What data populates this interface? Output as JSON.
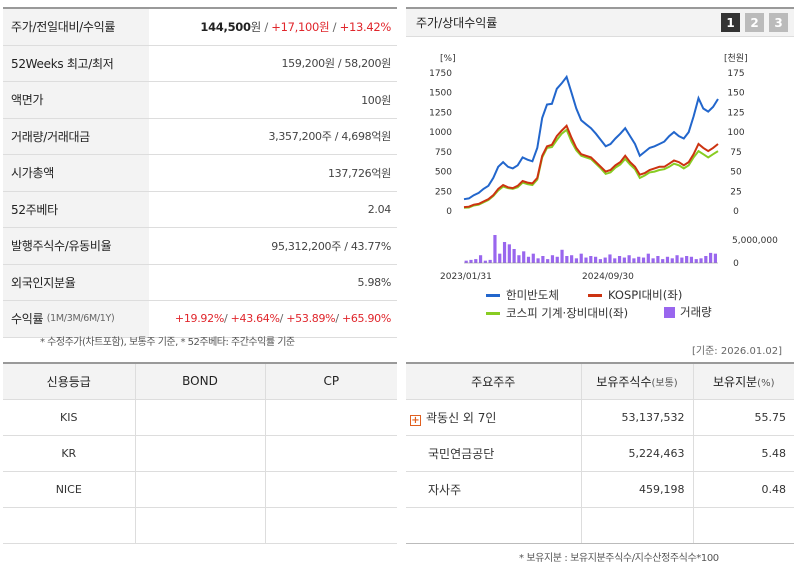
{
  "summary": {
    "rows": [
      {
        "label": "주가/전일대비/수익률",
        "price": "144,500",
        "price_unit": "원",
        "change": "+17,100원",
        "return": "+13.42%"
      },
      {
        "label": "52Weeks 최고/최저",
        "value": "159,200원 / 58,200원"
      },
      {
        "label": "액면가",
        "value": "100원"
      },
      {
        "label": "거래량/거래대금",
        "value": "3,357,200주 / 4,698억원"
      },
      {
        "label": "시가총액",
        "value": "137,726억원"
      },
      {
        "label": "52주베타",
        "value": "2.04"
      },
      {
        "label": "발행주식수/유동비율",
        "value": "95,312,200주 / 43.77%"
      },
      {
        "label": "외국인지분율",
        "value": "5.98%"
      },
      {
        "label": "수익률",
        "label_sub": "(1M/3M/6M/1Y)",
        "r1": "+19.92%",
        "r2": "+43.64%",
        "r3": "+53.89%",
        "r4": "+65.90%"
      }
    ],
    "note": "* 수정주가(차트포함), 보통주 기준, * 52주베타: 주간수익률 기준"
  },
  "chart_panel": {
    "title": "주가/상대수익률",
    "tabs": [
      "1",
      "2",
      "3"
    ],
    "date_note": "[기준: 2026.01.02]"
  },
  "chart_data": {
    "type": "line",
    "left_unit": "[%]",
    "right_unit": "[천원]",
    "left_ticks": [
      "1750",
      "1500",
      "1250",
      "1000",
      "750",
      "500",
      "250",
      "0"
    ],
    "right_ticks": [
      "175",
      "150",
      "125",
      "100",
      "75",
      "50",
      "25",
      "0"
    ],
    "volume_tick": "5,000,000",
    "volume_zero": "0",
    "x_labels": [
      "2023/01/31",
      "2024/09/30"
    ],
    "ylim": [
      0,
      1750
    ],
    "series": [
      {
        "name": "한미반도체",
        "color": "#2266cc",
        "values": [
          150,
          160,
          200,
          230,
          280,
          320,
          420,
          560,
          620,
          560,
          540,
          580,
          680,
          650,
          630,
          800,
          1180,
          1350,
          1360,
          1550,
          1620,
          1700,
          1500,
          1300,
          1150,
          1100,
          1050,
          980,
          900,
          820,
          850,
          920,
          980,
          1050,
          950,
          850,
          700,
          750,
          800,
          820,
          850,
          880,
          950,
          1000,
          950,
          920,
          1000,
          1200,
          1430,
          1300,
          1260,
          1320,
          1420
        ]
      },
      {
        "name": "KOSPI대비(좌)",
        "color": "#cc3311",
        "values": [
          50,
          55,
          80,
          90,
          120,
          150,
          200,
          280,
          330,
          300,
          290,
          320,
          380,
          360,
          350,
          420,
          700,
          820,
          840,
          950,
          1020,
          1080,
          930,
          800,
          720,
          700,
          680,
          620,
          560,
          500,
          520,
          580,
          620,
          700,
          620,
          560,
          460,
          480,
          520,
          540,
          560,
          560,
          600,
          640,
          620,
          580,
          620,
          720,
          850,
          800,
          760,
          800,
          850
        ]
      },
      {
        "name": "코스피 기계·장비대비(좌)",
        "color": "#88cc22",
        "values": [
          40,
          45,
          70,
          80,
          110,
          140,
          190,
          260,
          310,
          290,
          280,
          300,
          360,
          340,
          330,
          400,
          680,
          800,
          810,
          900,
          980,
          1030,
          880,
          770,
          700,
          680,
          660,
          600,
          540,
          470,
          490,
          550,
          590,
          660,
          590,
          530,
          420,
          450,
          490,
          500,
          520,
          530,
          560,
          600,
          580,
          540,
          580,
          680,
          760,
          720,
          680,
          720,
          760
        ]
      }
    ],
    "volume_name": "거래량",
    "volume_color": "#9966ee",
    "volume": [
      0.3,
      0.4,
      0.5,
      1.0,
      0.3,
      0.4,
      3.6,
      1.2,
      2.7,
      2.4,
      1.8,
      1.0,
      1.5,
      0.8,
      1.2,
      0.6,
      0.9,
      0.5,
      1.0,
      0.8,
      1.7,
      0.9,
      1.0,
      0.6,
      1.2,
      0.7,
      0.9,
      0.8,
      0.5,
      0.7,
      1.1,
      0.6,
      0.9,
      0.7,
      1.0,
      0.6,
      0.8,
      0.7,
      1.2,
      0.6,
      0.9,
      0.5,
      0.8,
      0.6,
      1.0,
      0.7,
      0.9,
      0.8,
      0.5,
      0.6,
      0.9,
      1.3,
      1.2
    ]
  },
  "rating": {
    "headers": [
      "신용등급",
      "BOND",
      "CP"
    ],
    "rows": [
      [
        "KIS",
        "",
        ""
      ],
      [
        "KR",
        "",
        ""
      ],
      [
        "NICE",
        "",
        ""
      ],
      [
        "",
        "",
        ""
      ]
    ]
  },
  "holders": {
    "headers": {
      "name": "주요주주",
      "shares": "보유주식수",
      "shares_unit": "(보통)",
      "ratio": "보유지분",
      "ratio_unit": "(%)"
    },
    "rows": [
      {
        "name": "곽동신 외 7인",
        "shares": "53,137,532",
        "ratio": "55.75",
        "expand": true
      },
      {
        "name": "국민연금공단",
        "shares": "5,224,463",
        "ratio": "5.48"
      },
      {
        "name": "자사주",
        "shares": "459,198",
        "ratio": "0.48"
      }
    ],
    "note": "* 보유지분 : 보유지분주식수/지수산정주식수*100"
  }
}
